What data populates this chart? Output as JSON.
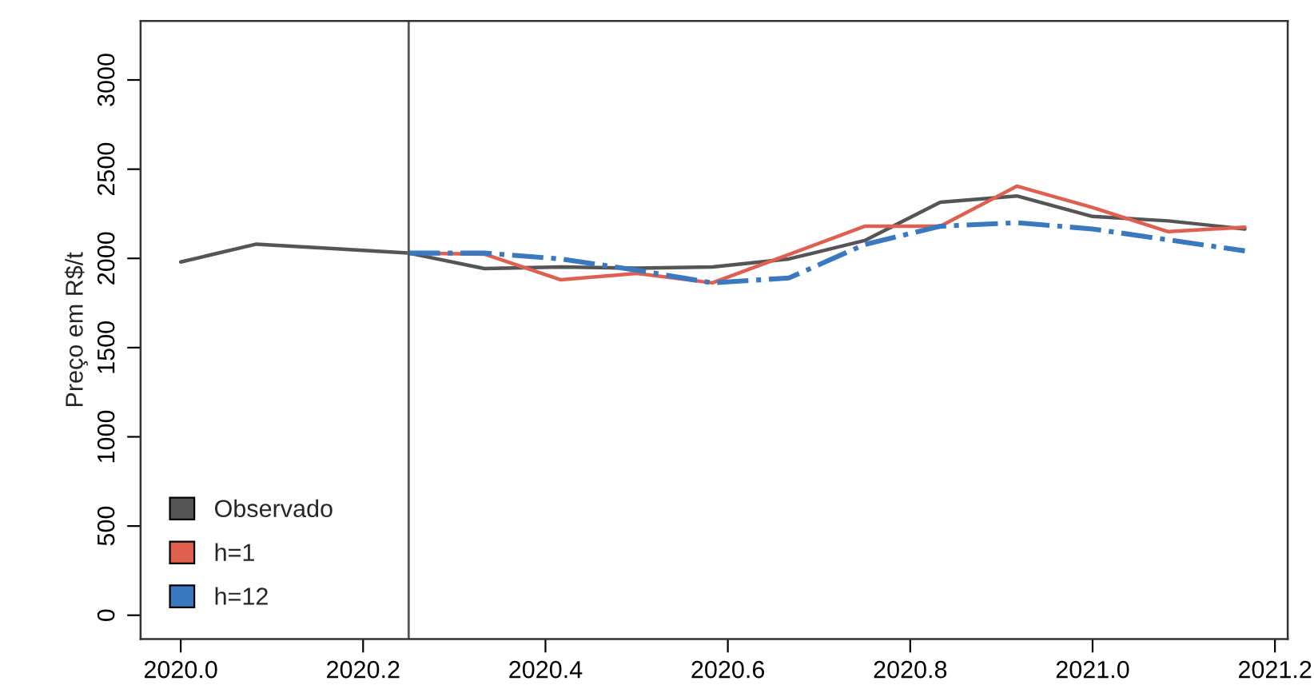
{
  "chart_data": {
    "type": "line",
    "ylabel": "Preço em R$/t",
    "xlim": [
      2019.956,
      2021.214
    ],
    "ylim": [
      -134,
      3331
    ],
    "xticks": [
      {
        "value": 2020.0,
        "label": "2020.0"
      },
      {
        "value": 2020.2,
        "label": "2020.2"
      },
      {
        "value": 2020.4,
        "label": "2020.4"
      },
      {
        "value": 2020.6,
        "label": "2020.6"
      },
      {
        "value": 2020.8,
        "label": "2020.8"
      },
      {
        "value": 2021.0,
        "label": "2021.0"
      },
      {
        "value": 2021.2,
        "label": "2021.2"
      }
    ],
    "yticks": [
      0,
      500,
      1000,
      1500,
      2000,
      2500,
      3000
    ],
    "grid": false,
    "legend": "bottom left",
    "ref_lines": [
      {
        "axis": "x",
        "value": 2020.25,
        "color": "#555555"
      }
    ],
    "series": [
      {
        "name": "Observado",
        "color": "#555555",
        "line_style": "solid",
        "x": [
          2020.0,
          2020.083,
          2020.167,
          2020.25,
          2020.333,
          2020.417,
          2020.5,
          2020.583,
          2020.667,
          2020.75,
          2020.833,
          2020.917,
          2021.0,
          2021.083,
          2021.167
        ],
        "values": [
          1980,
          2080,
          2055,
          2030,
          1943,
          1952,
          1945,
          1952,
          1997,
          2100,
          2315,
          2350,
          2235,
          2210,
          2165
        ]
      },
      {
        "name": "h=1",
        "color": "#e0604f",
        "line_style": "solid",
        "x": [
          2020.25,
          2020.333,
          2020.417,
          2020.5,
          2020.583,
          2020.75,
          2020.833,
          2020.917,
          2021.0,
          2021.083,
          2021.167
        ],
        "values": [
          2030,
          2024,
          1880,
          1916,
          1863,
          2180,
          2180,
          2405,
          2285,
          2150,
          2175
        ]
      },
      {
        "name": "h=12",
        "color": "#3a78c0",
        "line_style": "dashdot",
        "x": [
          2020.25,
          2020.333,
          2020.417,
          2020.5,
          2020.583,
          2020.667,
          2020.75,
          2020.833,
          2020.917,
          2021.0,
          2021.083,
          2021.167
        ],
        "values": [
          2030,
          2030,
          1997,
          1934,
          1863,
          1890,
          2078,
          2180,
          2200,
          2165,
          2104,
          2042
        ]
      }
    ]
  }
}
